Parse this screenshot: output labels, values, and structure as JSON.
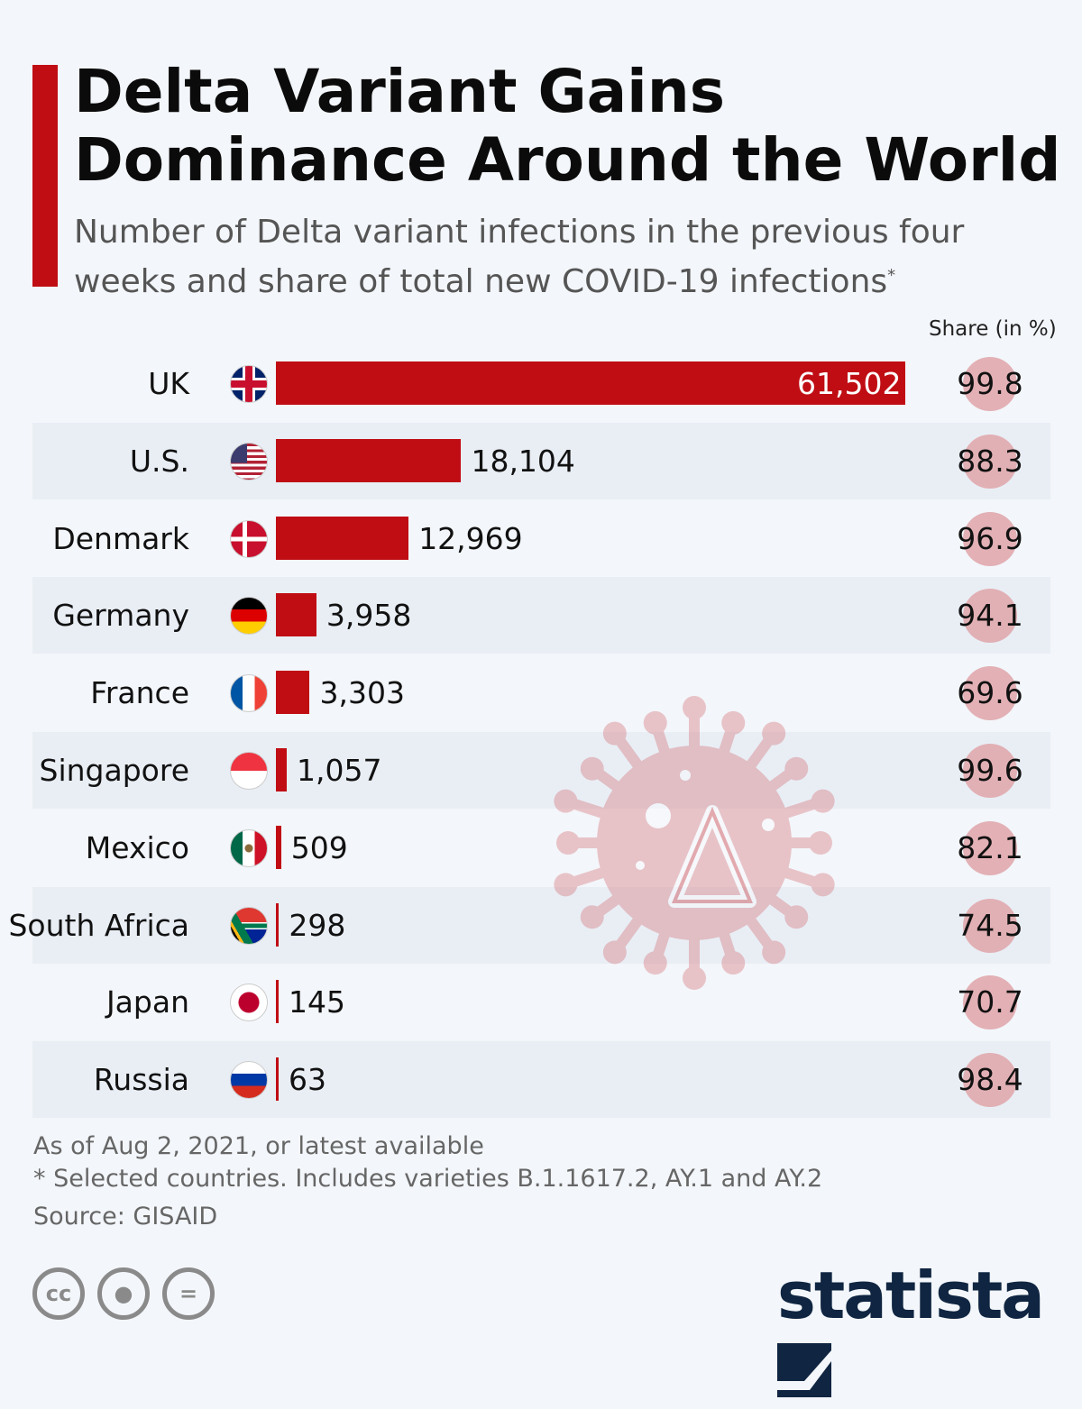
{
  "header": {
    "title": "Delta Variant Gains Dominance Around the World",
    "subtitle": "Number of Delta variant infections in the previous four weeks and share of total new COVID-19 infections",
    "subtitle_mark": "*"
  },
  "chart_data": {
    "type": "bar",
    "orientation": "horizontal",
    "categories": [
      "UK",
      "U.S.",
      "Denmark",
      "Germany",
      "France",
      "Singapore",
      "Mexico",
      "South Africa",
      "Japan",
      "Russia"
    ],
    "series": [
      {
        "values": [
          61502,
          18104,
          12969,
          3958,
          3303,
          1057,
          509,
          298,
          145,
          63
        ],
        "labels": [
          "61,502",
          "18,104",
          "12,969",
          "3,958",
          "3,303",
          "1,057",
          "509",
          "298",
          "145",
          "63"
        ]
      },
      {
        "name": "Share (in %)",
        "values": [
          99.8,
          88.3,
          96.9,
          94.1,
          69.6,
          99.6,
          82.1,
          74.5,
          70.7,
          98.4
        ],
        "labels": [
          "99.8",
          "88.3",
          "96.9",
          "94.1",
          "69.6",
          "99.6",
          "82.1",
          "74.5",
          "70.7",
          "98.4"
        ]
      }
    ],
    "flags": [
      "uk-flag-icon",
      "us-flag-icon",
      "denmark-flag-icon",
      "germany-flag-icon",
      "france-flag-icon",
      "singapore-flag-icon",
      "mexico-flag-icon",
      "south-africa-flag-icon",
      "japan-flag-icon",
      "russia-flag-icon"
    ],
    "bar_color": "#c00d14",
    "share_circle_color": "#e0a9ad"
  },
  "share_header": "Share (in %)",
  "footer": {
    "date_note": "As of Aug 2, 2021, or latest available",
    "footnote": "* Selected countries. Includes varieties B.1.1617.2, AY.1 and AY.2",
    "source": "Source: GISAID",
    "logo": "statista",
    "license_icons": [
      "cc-icon",
      "attribution-icon",
      "no-derivatives-icon"
    ]
  }
}
